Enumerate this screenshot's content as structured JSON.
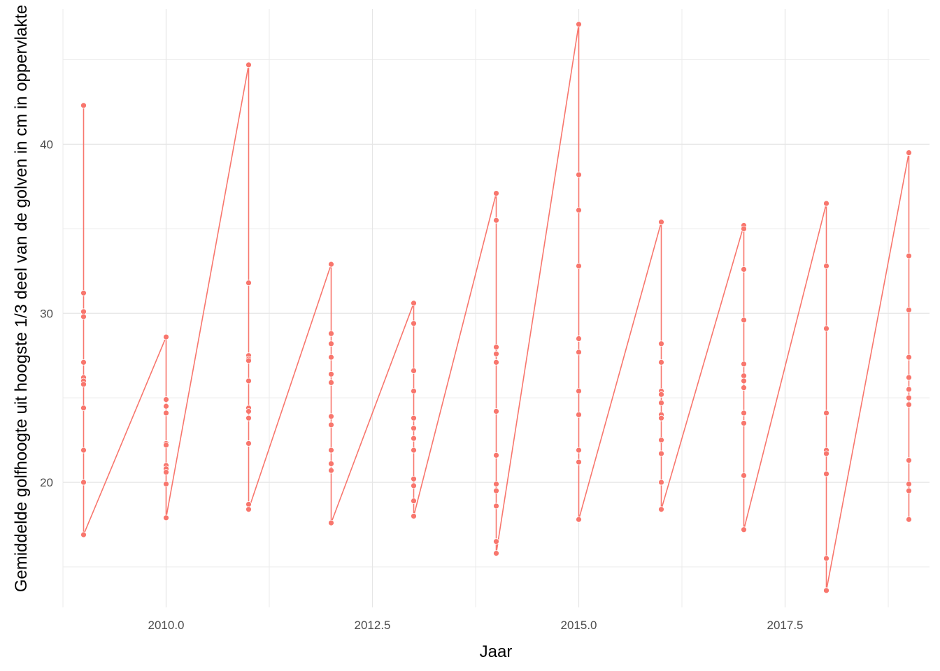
{
  "chart_data": {
    "type": "line",
    "title": "",
    "xlabel": "Jaar",
    "ylabel": "Gemiddelde golfhoogte uit hoogste 1/3 deel van de golven in cm in oppervlakte",
    "xlim": [
      2008.75,
      2019.25
    ],
    "ylim": [
      12.6,
      48.0
    ],
    "x_ticks": [
      2010.0,
      2012.5,
      2015.0,
      2017.5
    ],
    "x_tick_labels": [
      "2010.0",
      "2012.5",
      "2015.0",
      "2017.5"
    ],
    "y_ticks": [
      20,
      30,
      40
    ],
    "y_tick_labels": [
      "20",
      "30",
      "40"
    ],
    "grid": true,
    "legend": "none",
    "color": "#F8766D",
    "series": [
      {
        "points": [
          [
            2009,
            42.3
          ],
          [
            2009,
            31.2
          ],
          [
            2009,
            30.1
          ],
          [
            2009,
            29.8
          ],
          [
            2009,
            27.1
          ],
          [
            2009,
            26.2
          ],
          [
            2009,
            26.0
          ],
          [
            2009,
            25.8
          ],
          [
            2009,
            24.4
          ],
          [
            2009,
            21.9
          ],
          [
            2009,
            20.0
          ],
          [
            2009,
            16.9
          ],
          [
            2010,
            28.6
          ],
          [
            2010,
            24.9
          ],
          [
            2010,
            24.5
          ],
          [
            2010,
            24.1
          ],
          [
            2010,
            22.3
          ],
          [
            2010,
            22.2
          ],
          [
            2010,
            21.0
          ],
          [
            2010,
            20.8
          ],
          [
            2010,
            20.6
          ],
          [
            2010,
            19.9
          ],
          [
            2010,
            17.9
          ],
          [
            2011,
            44.7
          ],
          [
            2011,
            31.8
          ],
          [
            2011,
            27.5
          ],
          [
            2011,
            27.3
          ],
          [
            2011,
            27.2
          ],
          [
            2011,
            26.0
          ],
          [
            2011,
            24.4
          ],
          [
            2011,
            24.2
          ],
          [
            2011,
            23.8
          ],
          [
            2011,
            22.3
          ],
          [
            2011,
            18.7
          ],
          [
            2011,
            18.4
          ],
          [
            2012,
            32.9
          ],
          [
            2012,
            28.8
          ],
          [
            2012,
            28.2
          ],
          [
            2012,
            27.4
          ],
          [
            2012,
            26.4
          ],
          [
            2012,
            25.9
          ],
          [
            2012,
            23.9
          ],
          [
            2012,
            23.4
          ],
          [
            2012,
            21.9
          ],
          [
            2012,
            21.1
          ],
          [
            2012,
            20.7
          ],
          [
            2012,
            17.6
          ],
          [
            2013,
            30.6
          ],
          [
            2013,
            29.4
          ],
          [
            2013,
            26.6
          ],
          [
            2013,
            25.4
          ],
          [
            2013,
            23.8
          ],
          [
            2013,
            23.2
          ],
          [
            2013,
            22.6
          ],
          [
            2013,
            21.9
          ],
          [
            2013,
            20.2
          ],
          [
            2013,
            19.8
          ],
          [
            2013,
            18.9
          ],
          [
            2013,
            18.0
          ],
          [
            2014,
            37.1
          ],
          [
            2014,
            35.5
          ],
          [
            2014,
            28.0
          ],
          [
            2014,
            27.6
          ],
          [
            2014,
            27.1
          ],
          [
            2014,
            24.2
          ],
          [
            2014,
            21.6
          ],
          [
            2014,
            19.9
          ],
          [
            2014,
            19.5
          ],
          [
            2014,
            18.6
          ],
          [
            2014,
            16.5
          ],
          [
            2014,
            15.8
          ],
          [
            2015,
            47.1
          ],
          [
            2015,
            38.2
          ],
          [
            2015,
            36.1
          ],
          [
            2015,
            32.8
          ],
          [
            2015,
            28.5
          ],
          [
            2015,
            27.7
          ],
          [
            2015,
            25.4
          ],
          [
            2015,
            24.0
          ],
          [
            2015,
            21.9
          ],
          [
            2015,
            21.2
          ],
          [
            2015,
            17.8
          ],
          [
            2016,
            35.4
          ],
          [
            2016,
            28.2
          ],
          [
            2016,
            27.1
          ],
          [
            2016,
            25.4
          ],
          [
            2016,
            25.2
          ],
          [
            2016,
            24.7
          ],
          [
            2016,
            24.0
          ],
          [
            2016,
            23.8
          ],
          [
            2016,
            22.5
          ],
          [
            2016,
            21.7
          ],
          [
            2016,
            20.0
          ],
          [
            2016,
            18.4
          ],
          [
            2017,
            35.2
          ],
          [
            2017,
            35.0
          ],
          [
            2017,
            32.6
          ],
          [
            2017,
            29.6
          ],
          [
            2017,
            27.0
          ],
          [
            2017,
            26.3
          ],
          [
            2017,
            26.0
          ],
          [
            2017,
            25.6
          ],
          [
            2017,
            24.1
          ],
          [
            2017,
            23.5
          ],
          [
            2017,
            20.4
          ],
          [
            2017,
            17.2
          ],
          [
            2018,
            36.5
          ],
          [
            2018,
            32.8
          ],
          [
            2018,
            29.1
          ],
          [
            2018,
            24.1
          ],
          [
            2018,
            21.9
          ],
          [
            2018,
            21.7
          ],
          [
            2018,
            20.5
          ],
          [
            2018,
            15.5
          ],
          [
            2018,
            13.6
          ],
          [
            2019,
            39.5
          ],
          [
            2019,
            33.4
          ],
          [
            2019,
            30.2
          ],
          [
            2019,
            27.4
          ],
          [
            2019,
            26.2
          ],
          [
            2019,
            25.5
          ],
          [
            2019,
            25.0
          ],
          [
            2019,
            24.6
          ],
          [
            2019,
            21.3
          ],
          [
            2019,
            19.9
          ],
          [
            2019,
            19.5
          ],
          [
            2019,
            17.8
          ]
        ]
      }
    ]
  }
}
